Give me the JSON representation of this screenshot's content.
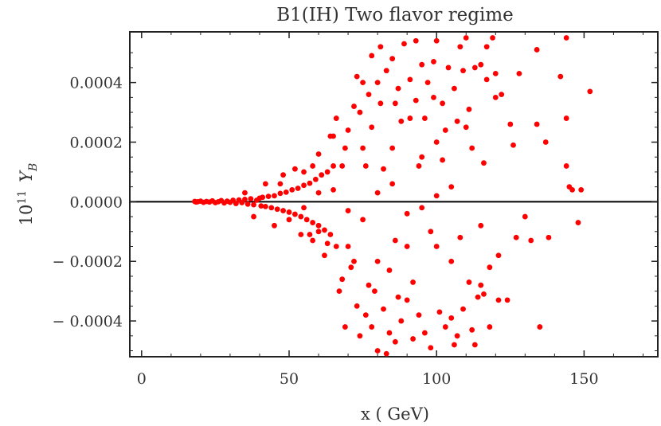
{
  "chart_data": {
    "type": "scatter",
    "title": "B1(IH) Two flavor regime",
    "xlabel": "x  ( GeV)",
    "ylabel_prefix": "10",
    "ylabel_exponent": "11",
    "ylabel_symbol": "Y",
    "ylabel_subscript": "B",
    "xlim": [
      -4,
      175
    ],
    "ylim": [
      -0.00052,
      0.00057
    ],
    "x_ticks": [
      0,
      50,
      100,
      150
    ],
    "x_tick_labels": [
      "0",
      "50",
      "100",
      "150"
    ],
    "y_ticks": [
      -0.0004,
      -0.0002,
      0.0,
      0.0002,
      0.0004
    ],
    "y_tick_labels": [
      "− 0.0004",
      "− 0.0002",
      "0.0000",
      "0.0002",
      "0.0004"
    ],
    "grid": false,
    "zero_line": true,
    "marker_color": "#ff0000",
    "series": [
      {
        "points": [
          [
            18.0,
            1e-06
          ],
          [
            18.5,
            -1e-06
          ],
          [
            19.0,
            0.0
          ],
          [
            20.0,
            2e-06
          ],
          [
            21.0,
            -2e-06
          ],
          [
            22.0,
            1e-06
          ],
          [
            23.0,
            -1e-06
          ],
          [
            24.0,
            3e-06
          ],
          [
            25.0,
            -3e-06
          ],
          [
            26.0,
            0.0
          ],
          [
            27.0,
            4e-06
          ],
          [
            28.0,
            -4e-06
          ],
          [
            29.0,
            2e-06
          ],
          [
            30.0,
            -2e-06
          ],
          [
            31.0,
            5e-06
          ],
          [
            32.0,
            -6e-06
          ],
          [
            33.0,
            6e-06
          ],
          [
            34.0,
            -3e-06
          ],
          [
            35.0,
            8e-06
          ],
          [
            36.0,
            -8e-06
          ],
          [
            37.0,
            1e-05
          ],
          [
            38.0,
            -1e-05
          ],
          [
            39.0,
            5e-06
          ],
          [
            40.0,
            1.2e-05
          ],
          [
            40.5,
            -1.4e-05
          ],
          [
            41.0,
            1.5e-05
          ],
          [
            42.0,
            -1.6e-05
          ],
          [
            43.0,
            1.8e-05
          ],
          [
            44.0,
            -2e-05
          ],
          [
            45.0,
            2e-05
          ],
          [
            46.0,
            -2.5e-05
          ],
          [
            47.0,
            2.8e-05
          ],
          [
            48.0,
            -3e-05
          ],
          [
            49.0,
            3.2e-05
          ],
          [
            50.0,
            -3.5e-05
          ],
          [
            51.0,
            4e-05
          ],
          [
            52.0,
            -4.2e-05
          ],
          [
            53.0,
            4.5e-05
          ],
          [
            54.0,
            -5e-05
          ],
          [
            55.0,
            5.5e-05
          ],
          [
            56.0,
            -6e-05
          ],
          [
            57.0,
            6.2e-05
          ],
          [
            58.0,
            -7e-05
          ],
          [
            59.0,
            7.5e-05
          ],
          [
            60.0,
            -8e-05
          ],
          [
            61.0,
            9e-05
          ],
          [
            62.0,
            -9.5e-05
          ],
          [
            63.0,
            0.0001
          ],
          [
            64.0,
            -0.00011
          ],
          [
            65.0,
            0.00012
          ],
          [
            60.0,
            0.00016
          ],
          [
            62.0,
            -0.00018
          ],
          [
            64.0,
            0.00022
          ],
          [
            66.0,
            -0.00015
          ],
          [
            58.0,
            -0.00013
          ],
          [
            55.0,
            0.0001
          ],
          [
            52.0,
            0.00011
          ],
          [
            57.0,
            -0.00011
          ],
          [
            50.0,
            -6e-05
          ],
          [
            47.0,
            6e-05
          ],
          [
            66.0,
            0.00028
          ],
          [
            68.0,
            -0.00026
          ],
          [
            69.0,
            0.00018
          ],
          [
            67.0,
            -0.0003
          ],
          [
            70.0,
            0.00024
          ],
          [
            71.0,
            -0.00022
          ],
          [
            72.0,
            0.00032
          ],
          [
            73.0,
            -0.00035
          ],
          [
            74.0,
            0.0003
          ],
          [
            74.0,
            -0.00045
          ],
          [
            75.0,
            0.0004
          ],
          [
            76.0,
            -0.00038
          ],
          [
            77.0,
            0.00036
          ],
          [
            78.0,
            -0.00042
          ],
          [
            78.0,
            0.00049
          ],
          [
            79.0,
            -0.0003
          ],
          [
            80.0,
            0.0004
          ],
          [
            80.0,
            -0.0005
          ],
          [
            81.0,
            0.00052
          ],
          [
            82.0,
            -0.00036
          ],
          [
            83.0,
            0.00044
          ],
          [
            84.0,
            -0.00044
          ],
          [
            85.0,
            0.00048
          ],
          [
            86.0,
            -0.00047
          ],
          [
            87.0,
            0.00038
          ],
          [
            88.0,
            -0.0004
          ],
          [
            89.0,
            0.00053
          ],
          [
            90.0,
            -0.00033
          ],
          [
            91.0,
            0.00041
          ],
          [
            92.0,
            -0.00046
          ],
          [
            93.0,
            0.00054
          ],
          [
            94.0,
            -0.00038
          ],
          [
            95.0,
            0.00046
          ],
          [
            96.0,
            -0.00044
          ],
          [
            97.0,
            0.0004
          ],
          [
            98.0,
            -0.00049
          ],
          [
            99.0,
            0.00035
          ],
          [
            100.0,
            0.00054
          ],
          [
            101.0,
            -0.00037
          ],
          [
            102.0,
            0.00033
          ],
          [
            103.0,
            -0.00042
          ],
          [
            104.0,
            0.00045
          ],
          [
            105.0,
            -0.00039
          ],
          [
            106.0,
            0.00038
          ],
          [
            107.0,
            -0.00045
          ],
          [
            108.0,
            0.00052
          ],
          [
            109.0,
            -0.00036
          ],
          [
            110.0,
            0.00055
          ],
          [
            111.0,
            0.00031
          ],
          [
            112.0,
            -0.00043
          ],
          [
            113.0,
            0.00045
          ],
          [
            114.0,
            -0.00032
          ],
          [
            115.0,
            0.00046
          ],
          [
            116.0,
            -0.00031
          ],
          [
            117.0,
            0.00041
          ],
          [
            118.0,
            -0.00042
          ],
          [
            119.0,
            0.00055
          ],
          [
            120.0,
            0.00043
          ],
          [
            121.0,
            -0.00033
          ],
          [
            122.0,
            0.00036
          ],
          [
            124.0,
            -0.00033
          ],
          [
            126.0,
            0.00019
          ],
          [
            128.0,
            0.00043
          ],
          [
            130.0,
            -5e-05
          ],
          [
            132.0,
            -0.00013
          ],
          [
            134.0,
            0.00051
          ],
          [
            134.0,
            0.00026
          ],
          [
            135.0,
            -0.00042
          ],
          [
            137.0,
            0.0002
          ],
          [
            138.0,
            -0.00012
          ],
          [
            142.0,
            0.00042
          ],
          [
            144.0,
            0.00055
          ],
          [
            144.0,
            0.00028
          ],
          [
            144.0,
            0.00012
          ],
          [
            145.0,
            5e-05
          ],
          [
            146.0,
            4e-05
          ],
          [
            148.0,
            -7e-05
          ],
          [
            149.0,
            4e-05
          ],
          [
            152.0,
            0.00037
          ],
          [
            100.0,
            -0.00015
          ],
          [
            95.0,
            0.00015
          ],
          [
            90.0,
            -0.00015
          ],
          [
            85.0,
            0.00018
          ],
          [
            80.0,
            -0.0002
          ],
          [
            75.0,
            0.00018
          ],
          [
            70.0,
            -0.00015
          ],
          [
            65.0,
            0.00022
          ],
          [
            60.0,
            -0.0001
          ],
          [
            100.0,
            0.0002
          ],
          [
            105.0,
            -0.0002
          ],
          [
            110.0,
            0.00025
          ],
          [
            115.0,
            -0.00028
          ],
          [
            120.0,
            0.00035
          ],
          [
            88.0,
            0.00027
          ],
          [
            92.0,
            -0.00027
          ],
          [
            84.0,
            -0.00023
          ],
          [
            78.0,
            0.00025
          ],
          [
            72.0,
            -0.0002
          ],
          [
            68.0,
            0.00012
          ],
          [
            63.0,
            -0.00014
          ],
          [
            58.0,
            0.00012
          ],
          [
            54.0,
            -0.00011
          ],
          [
            48.0,
            9e-05
          ],
          [
            45.0,
            -8e-05
          ],
          [
            42.0,
            6e-05
          ],
          [
            38.0,
            -5e-05
          ],
          [
            35.0,
            3e-05
          ],
          [
            76.0,
            0.00012
          ],
          [
            82.0,
            0.00011
          ],
          [
            86.0,
            -0.00013
          ],
          [
            94.0,
            0.00012
          ],
          [
            98.0,
            -0.0001
          ],
          [
            102.0,
            0.00014
          ],
          [
            108.0,
            -0.00012
          ],
          [
            112.0,
            0.00018
          ],
          [
            118.0,
            -0.00022
          ],
          [
            125.0,
            0.00026
          ],
          [
            127.0,
            -0.00012
          ],
          [
            80.0,
            3e-05
          ],
          [
            90.0,
            -4e-05
          ],
          [
            100.0,
            2e-05
          ],
          [
            70.0,
            -3e-05
          ],
          [
            65.0,
            4e-05
          ],
          [
            75.0,
            -6e-05
          ],
          [
            85.0,
            6e-05
          ],
          [
            95.0,
            -2e-05
          ],
          [
            105.0,
            5e-05
          ],
          [
            115.0,
            -8e-05
          ],
          [
            60.0,
            3e-05
          ],
          [
            55.0,
            -2e-05
          ],
          [
            73.0,
            0.00042
          ],
          [
            77.0,
            -0.00028
          ],
          [
            81.0,
            0.00033
          ],
          [
            87.0,
            -0.00032
          ],
          [
            91.0,
            0.00028
          ],
          [
            96.0,
            0.00028
          ],
          [
            103.0,
            0.00024
          ],
          [
            107.0,
            0.00027
          ],
          [
            111.0,
            -0.00027
          ],
          [
            116.0,
            0.00013
          ],
          [
            121.0,
            -0.00018
          ],
          [
            69.0,
            -0.00042
          ],
          [
            83.0,
            -0.00051
          ],
          [
            99.0,
            0.00047
          ],
          [
            106.0,
            -0.00048
          ],
          [
            109.0,
            0.00044
          ],
          [
            113.0,
            -0.00048
          ],
          [
            117.0,
            0.00052
          ],
          [
            86.0,
            0.00033
          ],
          [
            93.0,
            0.00034
          ]
        ]
      }
    ]
  }
}
